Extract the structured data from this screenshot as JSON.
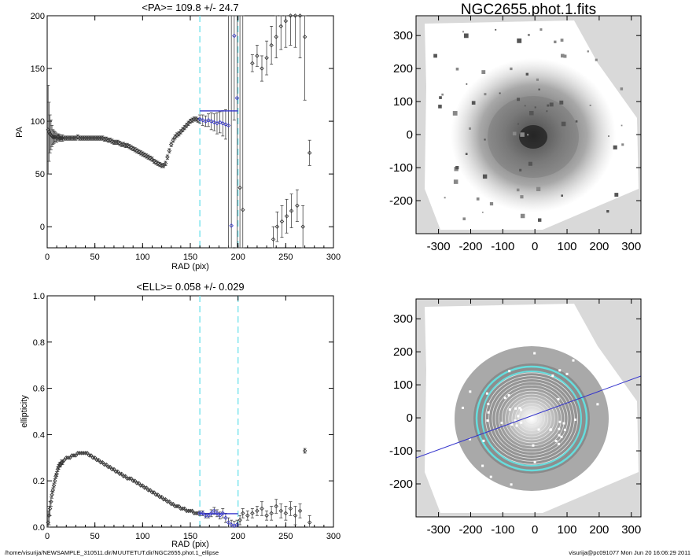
{
  "chart_data": [
    {
      "type": "scatter",
      "title": "<PA>= 109.8 +/-  24.7",
      "xlabel": "RAD (pix)",
      "ylabel": "PA",
      "xlim": [
        0,
        300
      ],
      "ylim": [
        -20,
        200
      ],
      "xticks": [
        "0",
        "50",
        "100",
        "150",
        "200",
        "250",
        "300"
      ],
      "yticks": [
        "0",
        "50",
        "100",
        "150",
        "200"
      ],
      "mean": 109.8,
      "mean_range": [
        160,
        200
      ],
      "dashed_lines": [
        160,
        200
      ],
      "grid": false,
      "points_x": [
        1,
        2,
        3,
        4,
        5,
        6,
        7,
        8,
        9,
        10,
        11,
        12,
        13,
        14,
        15,
        16,
        18,
        20,
        22,
        24,
        26,
        28,
        30,
        32,
        34,
        36,
        38,
        40,
        42,
        44,
        46,
        48,
        50,
        52,
        54,
        56,
        58,
        60,
        62,
        64,
        66,
        68,
        70,
        72,
        74,
        76,
        78,
        80,
        82,
        84,
        86,
        88,
        90,
        92,
        94,
        96,
        98,
        100,
        102,
        104,
        106,
        108,
        110,
        112,
        114,
        116,
        118,
        120,
        122,
        124,
        126,
        128,
        130,
        132,
        134,
        136,
        138,
        140,
        142,
        144,
        146,
        148,
        150,
        152,
        154,
        156,
        158,
        160,
        163,
        166,
        169,
        172,
        175,
        178,
        181,
        184,
        187,
        190,
        193,
        196,
        199,
        202,
        205,
        215,
        220,
        225,
        230,
        235,
        240,
        245,
        250,
        255,
        260,
        265,
        270,
        275,
        237,
        241,
        246,
        251,
        256,
        262,
        268
      ],
      "points_y": [
        92,
        90,
        88,
        87,
        86,
        85,
        85,
        85,
        85,
        84,
        85,
        85,
        84,
        84,
        84,
        84,
        84,
        84,
        84,
        84,
        84,
        84,
        84,
        85,
        84,
        84,
        84,
        84,
        84,
        84,
        84,
        84,
        84,
        84,
        84,
        84,
        84,
        83,
        83,
        82,
        82,
        81,
        80,
        80,
        80,
        79,
        78,
        78,
        77,
        77,
        76,
        75,
        74,
        73,
        72,
        71,
        70,
        69,
        68,
        67,
        66,
        65,
        64,
        62,
        61,
        60,
        59,
        58,
        58,
        60,
        66,
        72,
        78,
        82,
        85,
        87,
        88,
        90,
        92,
        94,
        96,
        98,
        100,
        101,
        102,
        102,
        101,
        102,
        101,
        100,
        101,
        100,
        99,
        98,
        99,
        98,
        97,
        96,
        1,
        181,
        122,
        37,
        16,
        155,
        162,
        150,
        160,
        172,
        180,
        190,
        195,
        200,
        200,
        200,
        180,
        70,
        -12,
        0,
        5,
        10,
        15,
        20,
        0
      ],
      "errors": [
        42,
        28,
        18,
        14,
        10,
        7,
        6,
        5,
        4,
        4,
        3,
        3,
        3,
        3,
        3,
        3,
        2,
        2,
        2,
        2,
        2,
        2,
        2,
        2,
        2,
        2,
        2,
        2,
        2,
        2,
        2,
        2,
        2,
        2,
        2,
        2,
        2,
        2,
        2,
        2,
        2,
        2,
        2,
        2,
        2,
        2,
        2,
        2,
        2,
        2,
        2,
        2,
        2,
        2,
        2,
        2,
        2,
        2,
        2,
        2,
        2,
        2,
        2,
        2,
        2,
        2,
        2,
        2,
        2,
        2,
        2,
        2,
        2,
        2,
        2,
        2,
        2,
        2,
        2,
        2,
        2,
        2,
        2,
        2,
        2,
        2,
        2,
        4,
        5,
        5,
        6,
        8,
        8,
        10,
        10,
        12,
        14,
        200,
        200,
        80,
        200,
        200,
        200,
        8,
        10,
        12,
        16,
        18,
        20,
        22,
        25,
        28,
        30,
        40,
        60,
        12,
        12,
        14,
        15,
        16,
        16,
        15,
        20
      ]
    },
    {
      "type": "scatter",
      "title": "<ELL>= 0.058 +/-  0.029",
      "xlabel": "RAD (pix)",
      "ylabel": "ellipticity",
      "xlim": [
        0,
        300
      ],
      "ylim": [
        0,
        1.0
      ],
      "xticks": [
        "0",
        "50",
        "100",
        "150",
        "200",
        "250",
        "300"
      ],
      "yticks": [
        "0.0",
        "0.2",
        "0.4",
        "0.6",
        "0.8",
        "1.0"
      ],
      "mean": 0.058,
      "mean_range": [
        160,
        200
      ],
      "dashed_lines": [
        160,
        200
      ],
      "grid": false,
      "points_x": [
        1,
        2,
        3,
        4,
        5,
        6,
        7,
        8,
        9,
        10,
        11,
        12,
        13,
        14,
        15,
        16,
        18,
        20,
        22,
        24,
        26,
        28,
        30,
        32,
        34,
        36,
        38,
        40,
        42,
        44,
        46,
        48,
        50,
        52,
        54,
        56,
        58,
        60,
        62,
        64,
        66,
        68,
        70,
        72,
        74,
        76,
        78,
        80,
        82,
        84,
        86,
        88,
        90,
        92,
        94,
        96,
        98,
        100,
        102,
        104,
        106,
        108,
        110,
        112,
        114,
        116,
        118,
        120,
        122,
        124,
        126,
        128,
        130,
        132,
        134,
        136,
        138,
        140,
        142,
        144,
        146,
        148,
        150,
        152,
        154,
        156,
        158,
        160,
        163,
        166,
        169,
        172,
        175,
        178,
        181,
        184,
        187,
        190,
        193,
        196,
        199,
        202,
        205,
        210,
        215,
        220,
        225,
        230,
        235,
        240,
        245,
        250,
        255,
        260,
        265,
        270,
        275
      ],
      "points_y": [
        0.02,
        0.05,
        0.08,
        0.11,
        0.14,
        0.16,
        0.18,
        0.2,
        0.22,
        0.23,
        0.25,
        0.26,
        0.27,
        0.27,
        0.28,
        0.28,
        0.29,
        0.3,
        0.3,
        0.3,
        0.31,
        0.31,
        0.31,
        0.32,
        0.32,
        0.32,
        0.32,
        0.32,
        0.32,
        0.31,
        0.31,
        0.3,
        0.3,
        0.29,
        0.29,
        0.28,
        0.28,
        0.27,
        0.27,
        0.26,
        0.26,
        0.25,
        0.25,
        0.24,
        0.24,
        0.23,
        0.23,
        0.22,
        0.22,
        0.21,
        0.21,
        0.21,
        0.2,
        0.2,
        0.19,
        0.19,
        0.18,
        0.18,
        0.17,
        0.17,
        0.16,
        0.16,
        0.15,
        0.15,
        0.14,
        0.14,
        0.13,
        0.13,
        0.12,
        0.12,
        0.11,
        0.11,
        0.1,
        0.1,
        0.09,
        0.09,
        0.09,
        0.08,
        0.08,
        0.08,
        0.07,
        0.07,
        0.07,
        0.07,
        0.06,
        0.06,
        0.06,
        0.06,
        0.06,
        0.05,
        0.05,
        0.06,
        0.07,
        0.06,
        0.05,
        0.06,
        0.04,
        0.02,
        0.01,
        0.005,
        0.01,
        0.03,
        0.06,
        0.05,
        0.06,
        0.07,
        0.08,
        0.05,
        0.06,
        0.09,
        0.07,
        0.06,
        0.08,
        0.05,
        0.07,
        0.33,
        0.02
      ],
      "errors": [
        0.05,
        0.04,
        0.03,
        0.02,
        0.015,
        0.01,
        0.01,
        0.01,
        0.01,
        0.01,
        0.01,
        0.01,
        0.01,
        0.01,
        0.01,
        0.01,
        0.005,
        0.005,
        0.005,
        0.005,
        0.005,
        0.005,
        0.005,
        0.005,
        0.005,
        0.005,
        0.005,
        0.005,
        0.005,
        0.005,
        0.005,
        0.005,
        0.005,
        0.005,
        0.005,
        0.005,
        0.005,
        0.005,
        0.005,
        0.005,
        0.005,
        0.005,
        0.005,
        0.005,
        0.005,
        0.005,
        0.005,
        0.005,
        0.005,
        0.005,
        0.005,
        0.005,
        0.005,
        0.005,
        0.005,
        0.005,
        0.005,
        0.005,
        0.005,
        0.005,
        0.005,
        0.005,
        0.005,
        0.005,
        0.005,
        0.005,
        0.005,
        0.005,
        0.005,
        0.005,
        0.005,
        0.005,
        0.005,
        0.005,
        0.005,
        0.005,
        0.005,
        0.005,
        0.005,
        0.005,
        0.005,
        0.005,
        0.005,
        0.005,
        0.005,
        0.005,
        0.005,
        0.01,
        0.01,
        0.01,
        0.01,
        0.015,
        0.015,
        0.015,
        0.015,
        0.02,
        0.02,
        0.02,
        0.02,
        0.02,
        0.02,
        0.02,
        0.02,
        0.02,
        0.02,
        0.02,
        0.03,
        0.02,
        0.03,
        0.03,
        0.03,
        0.03,
        0.03,
        0.04,
        0.03,
        0.01,
        0.03
      ]
    }
  ],
  "images": {
    "title": "NGC2655.phot.1.fits",
    "xticks": [
      "-300",
      "-200",
      "-100",
      "0",
      "100",
      "200",
      "300"
    ],
    "yticks": [
      "300",
      "200",
      "100",
      "0",
      "-100",
      "-200"
    ],
    "xlim": [
      -370,
      330
    ],
    "ylim": [
      -300,
      360
    ],
    "line_color": "#3333cc",
    "ellipse_color": "#66dddd"
  },
  "footer": {
    "path": "/home/visurija/NEWSAMPLE_310511.dir/MUUTETUT.dir/NGC2655.phot.1_ellipse",
    "stamp": "visurija@pc091077  Mon Jun 20 16:06:29 2011"
  }
}
